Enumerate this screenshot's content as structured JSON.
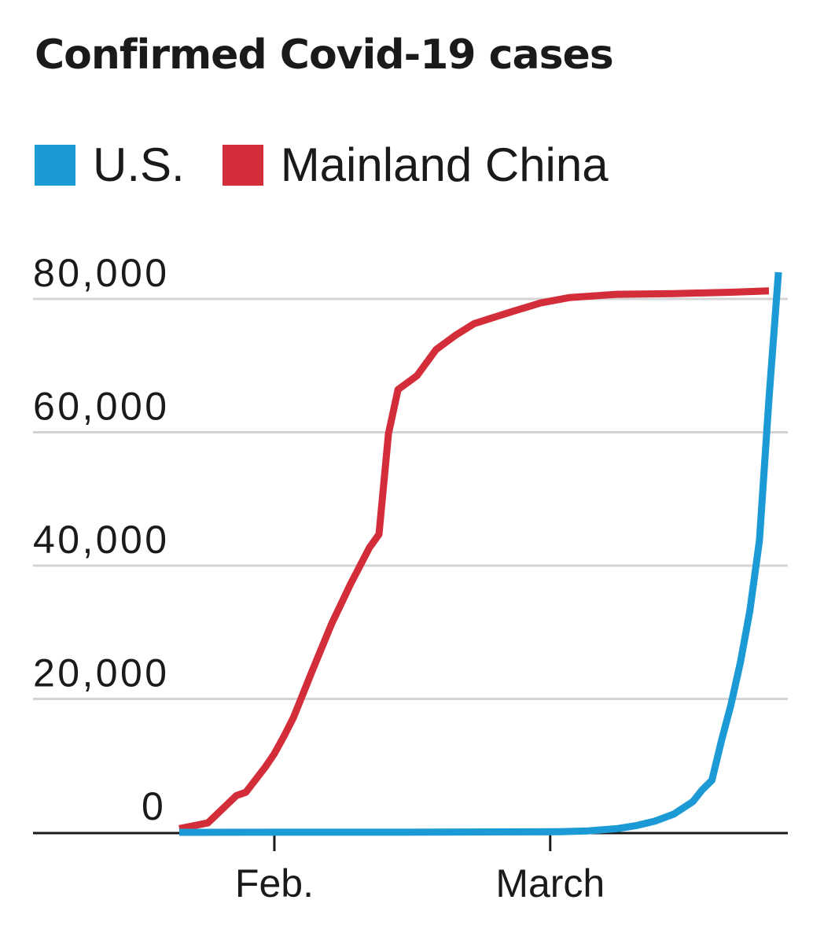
{
  "chart_data": {
    "type": "line",
    "title": "Confirmed Covid-19 cases",
    "xlabel": "",
    "ylabel": "",
    "x_range": [
      "2020-01-22",
      "2020-03-24"
    ],
    "ylim": [
      0,
      80000
    ],
    "y_ticks": [
      0,
      20000,
      40000,
      60000,
      80000
    ],
    "y_tick_labels": [
      "0",
      "20,000",
      "40,000",
      "60,000",
      "80,000"
    ],
    "x_ticks": [
      {
        "date": "2020-02-01",
        "label": "Feb."
      },
      {
        "date": "2020-03-01",
        "label": "March"
      }
    ],
    "grid": true,
    "legend_position": "top-left",
    "series": [
      {
        "name": "U.S.",
        "color": "#1b9ad6",
        "points": [
          [
            "2020-01-22",
            1
          ],
          [
            "2020-02-01",
            8
          ],
          [
            "2020-02-15",
            15
          ],
          [
            "2020-02-29",
            68
          ],
          [
            "2020-03-02",
            100
          ],
          [
            "2020-03-05",
            217
          ],
          [
            "2020-03-08",
            537
          ],
          [
            "2020-03-10",
            994
          ],
          [
            "2020-03-12",
            1663
          ],
          [
            "2020-03-14",
            2726
          ],
          [
            "2020-03-16",
            4600
          ],
          [
            "2020-03-17",
            6400
          ],
          [
            "2020-03-18",
            7800
          ],
          [
            "2020-03-19",
            13700
          ],
          [
            "2020-03-20",
            19100
          ],
          [
            "2020-03-21",
            25500
          ],
          [
            "2020-03-22",
            33300
          ],
          [
            "2020-03-23",
            43800
          ],
          [
            "2020-03-24",
            65000
          ],
          [
            "2020-03-25",
            84000
          ]
        ]
      },
      {
        "name": "Mainland China",
        "color": "#d42d3a",
        "points": [
          [
            "2020-01-22",
            550
          ],
          [
            "2020-01-25",
            1400
          ],
          [
            "2020-01-28",
            5500
          ],
          [
            "2020-01-29",
            6000
          ],
          [
            "2020-01-31",
            9700
          ],
          [
            "2020-02-01",
            11800
          ],
          [
            "2020-02-02",
            14400
          ],
          [
            "2020-02-03",
            17200
          ],
          [
            "2020-02-05",
            24300
          ],
          [
            "2020-02-07",
            31200
          ],
          [
            "2020-02-09",
            37200
          ],
          [
            "2020-02-11",
            42700
          ],
          [
            "2020-02-12",
            44700
          ],
          [
            "2020-02-13",
            59800
          ],
          [
            "2020-02-14",
            66400
          ],
          [
            "2020-02-16",
            68500
          ],
          [
            "2020-02-18",
            72400
          ],
          [
            "2020-02-20",
            74500
          ],
          [
            "2020-02-22",
            76300
          ],
          [
            "2020-02-24",
            77200
          ],
          [
            "2020-02-26",
            78100
          ],
          [
            "2020-02-29",
            79400
          ],
          [
            "2020-03-03",
            80200
          ],
          [
            "2020-03-08",
            80700
          ],
          [
            "2020-03-14",
            80800
          ],
          [
            "2020-03-20",
            81000
          ],
          [
            "2020-03-24",
            81200
          ]
        ]
      }
    ]
  }
}
